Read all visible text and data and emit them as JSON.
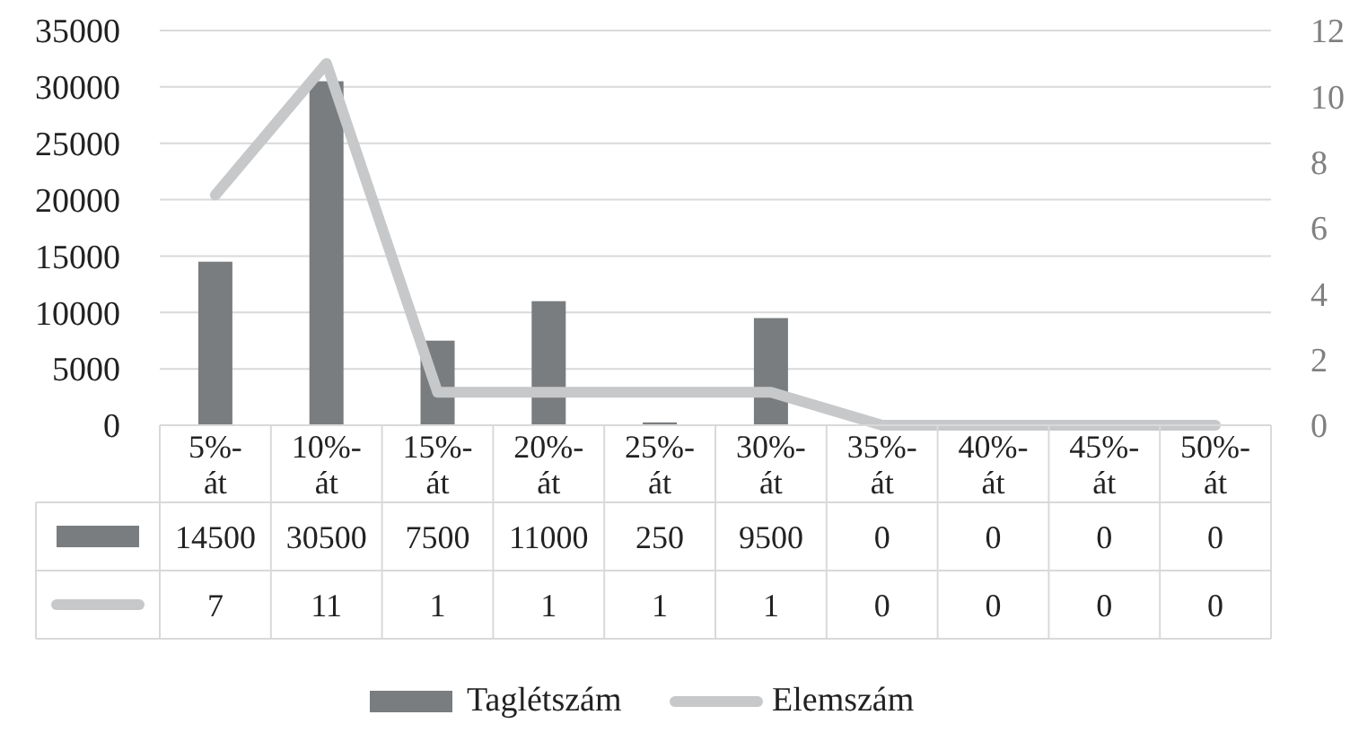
{
  "chart_data": {
    "type": "bar",
    "categories": [
      "5%-át",
      "10%-át",
      "15%-át",
      "20%-át",
      "25%-át",
      "30%-át",
      "35%-át",
      "40%-át",
      "45%-át",
      "50%-át"
    ],
    "series": [
      {
        "name": "Taglétszám",
        "color": "#7a7d7f",
        "values": [
          14500,
          30500,
          7500,
          11000,
          250,
          9500,
          0,
          0,
          0,
          0
        ]
      },
      {
        "name": "Elemszám",
        "type": "line",
        "axis": "y2",
        "color": "#c6c8ca",
        "values": [
          7,
          11,
          1,
          1,
          1,
          1,
          0,
          0,
          0,
          0
        ]
      }
    ],
    "ylim": [
      0,
      35000
    ],
    "yticks": [
      0,
      5000,
      10000,
      15000,
      20000,
      25000,
      30000,
      35000
    ],
    "y2lim": [
      0,
      12
    ],
    "y2ticks": [
      0,
      2,
      4,
      6,
      8,
      10,
      12
    ],
    "grid": "y",
    "legend": "bottom",
    "data_labels": true
  }
}
